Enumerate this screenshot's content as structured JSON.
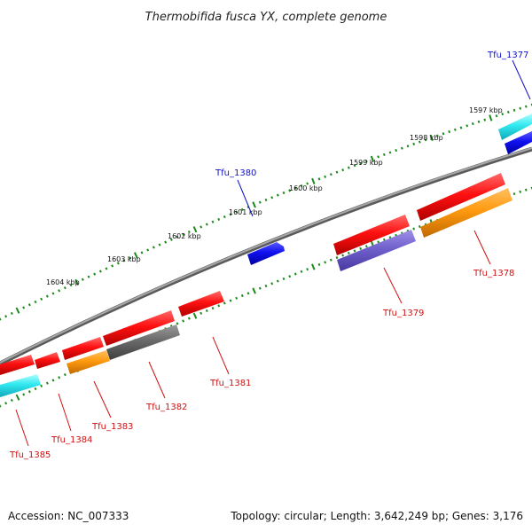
{
  "title": "Thermobifida fusca YX, complete genome",
  "footer": {
    "accession": "Accession: NC_007333",
    "stats": "Topology: circular; Length: 3,642,249 bp; Genes: 3,176"
  },
  "colors": {
    "backbone": "#8a8a8a",
    "tick": "#1a8a1a",
    "label_blue": "#1010c8",
    "label_red": "#d01010"
  },
  "kbp_ticks": [
    "1597 kbp",
    "1598 kbp",
    "1599 kbp",
    "1600 kbp",
    "1601 kbp",
    "1602 kbp",
    "1603 kbp",
    "1604 kbp"
  ],
  "genes": [
    {
      "name": "Tfu_1377",
      "label_color": "blue"
    },
    {
      "name": "Tfu_1378",
      "label_color": "red"
    },
    {
      "name": "Tfu_1379",
      "label_color": "red"
    },
    {
      "name": "Tfu_1380",
      "label_color": "blue"
    },
    {
      "name": "Tfu_1381",
      "label_color": "red"
    },
    {
      "name": "Tfu_1382",
      "label_color": "red"
    },
    {
      "name": "Tfu_1383",
      "label_color": "red"
    },
    {
      "name": "Tfu_1384",
      "label_color": "red"
    },
    {
      "name": "Tfu_1385",
      "label_color": "red"
    }
  ]
}
